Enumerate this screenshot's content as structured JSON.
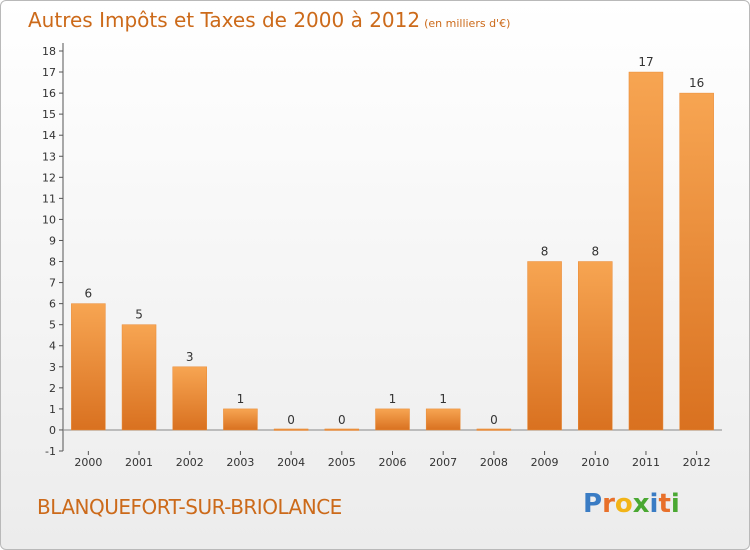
{
  "chart_data": {
    "type": "bar",
    "title": "Autres Impôts et Taxes de 2000 à 2012",
    "subtitle": "(en milliers d'€)",
    "categories": [
      "2000",
      "2001",
      "2002",
      "2003",
      "2004",
      "2005",
      "2006",
      "2007",
      "2008",
      "2009",
      "2010",
      "2011",
      "2012"
    ],
    "values": [
      6,
      5,
      3,
      1,
      0,
      0,
      1,
      1,
      0,
      8,
      8,
      17,
      16
    ],
    "ylim": [
      -1,
      18
    ],
    "yticks": [
      -1,
      0,
      1,
      2,
      3,
      4,
      5,
      6,
      7,
      8,
      9,
      10,
      11,
      12,
      13,
      14,
      15,
      16,
      17,
      18
    ],
    "grid": false,
    "bar_color": "#f0923c"
  },
  "footer": {
    "city": "BLANQUEFORT-SUR-BRIOLANCE"
  },
  "logo": {
    "letters": [
      "P",
      "r",
      "o",
      "x",
      "i",
      "t",
      "i"
    ],
    "colors": [
      "#3a7cc4",
      "#e8702a",
      "#f2b417",
      "#4aa832",
      "#3a7cc4",
      "#e8702a",
      "#4aa832"
    ]
  }
}
